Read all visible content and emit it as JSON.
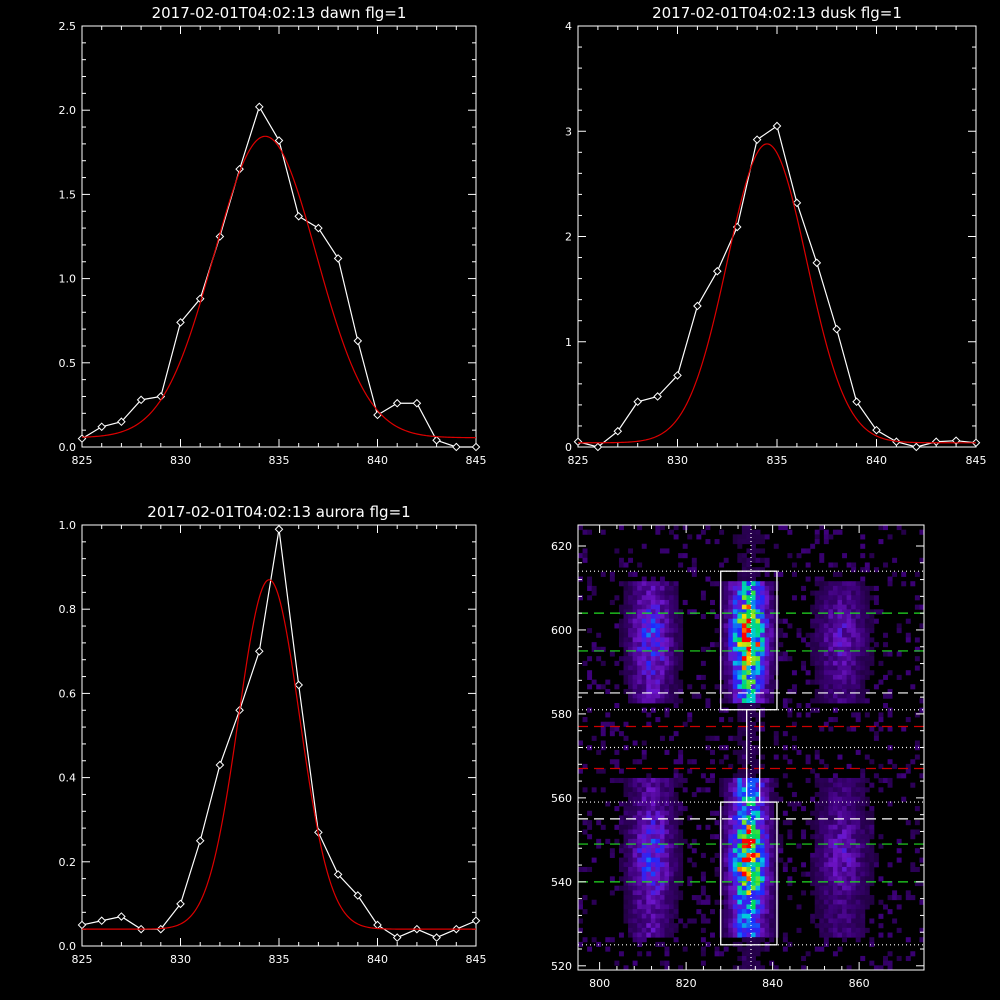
{
  "chart_data": [
    {
      "type": "line",
      "title": "2017-02-01T04:02:13 dawn flg=1",
      "xlim": [
        825,
        845
      ],
      "ylim": [
        0,
        2.5
      ],
      "xticks": [
        "825",
        "830",
        "835",
        "840",
        "845"
      ],
      "yticks": [
        "0.0",
        "0.5",
        "1.0",
        "1.5",
        "2.0",
        "2.5"
      ],
      "series": [
        {
          "kind": "data",
          "color": "#ffffff",
          "x": [
            825,
            826,
            827,
            828,
            829,
            830,
            831,
            832,
            833,
            834,
            835,
            836,
            837,
            838,
            839,
            840,
            841,
            842,
            843,
            844,
            845
          ],
          "y": [
            0.05,
            0.12,
            0.15,
            0.28,
            0.3,
            0.74,
            0.88,
            1.25,
            1.65,
            2.02,
            1.82,
            1.37,
            1.3,
            1.12,
            0.63,
            0.19,
            0.26,
            0.26,
            0.04,
            0.0,
            0.0
          ]
        },
        {
          "kind": "fit",
          "color": "#dd0000",
          "amplitude": 1.79,
          "center": 834.3,
          "sigma": 2.6,
          "offset": 0.055
        }
      ]
    },
    {
      "type": "line",
      "title": "2017-02-01T04:02:13 dusk flg=1",
      "xlim": [
        825,
        845
      ],
      "ylim": [
        0,
        4
      ],
      "xticks": [
        "825",
        "830",
        "835",
        "840",
        "845"
      ],
      "yticks": [
        "0",
        "1",
        "2",
        "3",
        "4"
      ],
      "series": [
        {
          "kind": "data",
          "color": "#ffffff",
          "x": [
            825,
            826,
            827,
            828,
            829,
            830,
            831,
            832,
            833,
            834,
            835,
            836,
            837,
            838,
            839,
            840,
            841,
            842,
            843,
            844,
            845
          ],
          "y": [
            0.05,
            0.0,
            0.15,
            0.43,
            0.48,
            0.68,
            1.34,
            1.67,
            2.09,
            2.92,
            3.05,
            2.32,
            1.75,
            1.12,
            0.43,
            0.16,
            0.05,
            0.0,
            0.05,
            0.06,
            0.04
          ]
        },
        {
          "kind": "fit",
          "color": "#dd0000",
          "amplitude": 2.84,
          "center": 834.5,
          "sigma": 2.0,
          "offset": 0.04
        }
      ]
    },
    {
      "type": "line",
      "title": "2017-02-01T04:02:13 aurora flg=1",
      "xlim": [
        825,
        845
      ],
      "ylim": [
        0,
        1.0
      ],
      "xticks": [
        "825",
        "830",
        "835",
        "840",
        "845"
      ],
      "yticks": [
        "0.0",
        "0.2",
        "0.4",
        "0.6",
        "0.8",
        "1.0"
      ],
      "series": [
        {
          "kind": "data",
          "color": "#ffffff",
          "x": [
            825,
            826,
            827,
            828,
            829,
            830,
            831,
            832,
            833,
            834,
            835,
            836,
            837,
            838,
            839,
            840,
            841,
            842,
            843,
            844,
            845
          ],
          "y": [
            0.05,
            0.06,
            0.07,
            0.04,
            0.04,
            0.1,
            0.25,
            0.43,
            0.56,
            0.7,
            0.99,
            0.62,
            0.27,
            0.17,
            0.12,
            0.05,
            0.02,
            0.04,
            0.02,
            0.04,
            0.06
          ]
        },
        {
          "kind": "fit",
          "color": "#dd0000",
          "amplitude": 0.83,
          "center": 834.5,
          "sigma": 1.55,
          "offset": 0.04
        }
      ]
    },
    {
      "type": "heatmap",
      "title": "",
      "xlim": [
        795,
        875
      ],
      "ylim": [
        519,
        625
      ],
      "xticks": [
        "800",
        "820",
        "840",
        "860"
      ],
      "yticks": [
        "520",
        "540",
        "560",
        "580",
        "600",
        "620"
      ],
      "emission_columns": [
        {
          "center": 812,
          "width": 3.5,
          "strength": 0.45
        },
        {
          "center": 834.5,
          "width": 3.0,
          "strength": 1.0
        },
        {
          "center": 856,
          "width": 4.0,
          "strength": 0.3
        }
      ],
      "emission_bands": [
        {
          "y_min": 583,
          "y_max": 612,
          "peak": 598
        },
        {
          "y_min": 527,
          "y_max": 565,
          "peak": 546
        }
      ],
      "boxes": [
        {
          "x_min": 828,
          "x_max": 841,
          "y_min": 581,
          "y_max": 614
        },
        {
          "x_min": 828,
          "x_max": 841,
          "y_min": 525,
          "y_max": 559
        },
        {
          "x_min": 834,
          "x_max": 837,
          "y_min": 559,
          "y_max": 581
        }
      ],
      "vline": {
        "x": 835,
        "style": "dotted",
        "color": "#ffffff"
      },
      "hlines": [
        {
          "y": 614,
          "style": "dotted",
          "color": "#ffffff"
        },
        {
          "y": 604,
          "style": "dashed",
          "color": "#22dd22"
        },
        {
          "y": 595,
          "style": "dashed",
          "color": "#22dd22"
        },
        {
          "y": 585,
          "style": "dashed",
          "color": "#ffffff"
        },
        {
          "y": 581,
          "style": "dotted",
          "color": "#ffffff"
        },
        {
          "y": 577,
          "style": "dashed",
          "color": "#cc0000"
        },
        {
          "y": 572,
          "style": "dotted",
          "color": "#ffffff"
        },
        {
          "y": 567,
          "style": "dashed",
          "color": "#cc0000"
        },
        {
          "y": 559,
          "style": "dotted",
          "color": "#ffffff"
        },
        {
          "y": 555,
          "style": "dashed",
          "color": "#ffffff"
        },
        {
          "y": 549,
          "style": "dashed",
          "color": "#22dd22"
        },
        {
          "y": 540,
          "style": "dashed",
          "color": "#22dd22"
        },
        {
          "y": 525,
          "style": "dotted",
          "color": "#ffffff"
        }
      ]
    }
  ]
}
